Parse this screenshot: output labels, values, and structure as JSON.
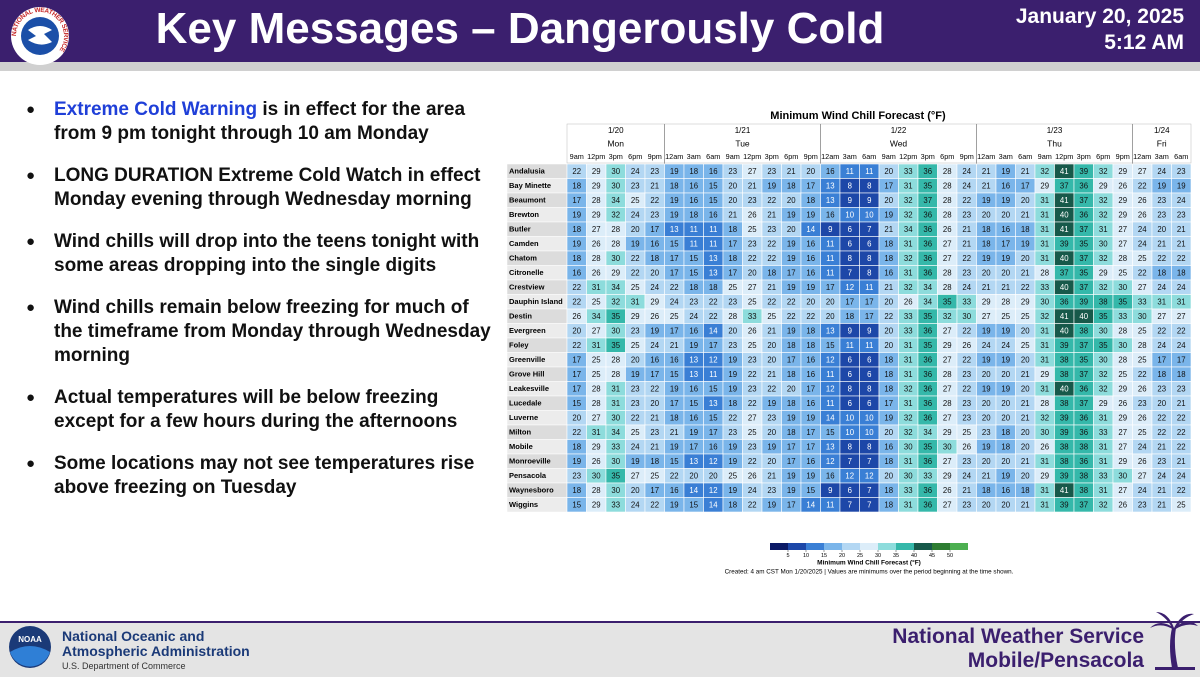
{
  "header": {
    "title": "Key Messages – Dangerously Cold",
    "date": "January 20, 2025",
    "time": "5:12 AM",
    "logo_text": "NATIONAL WEATHER SERVICE"
  },
  "bullets": [
    {
      "highlight": "Extreme Cold Warning",
      "text": " is in effect for the area from 9 pm tonight through 10 am Monday"
    },
    {
      "text": "LONG DURATION Extreme Cold Watch in effect Monday evening through Wednesday morning"
    },
    {
      "text": "Wind chills will drop into the teens tonight with some areas dropping into the single digits"
    },
    {
      "text": "Wind chills remain below freezing for much of the timeframe from Monday through Wednesday morning"
    },
    {
      "text": "Actual temperatures will be below freezing except for a few hours during the afternoons"
    },
    {
      "text": "Some locations may not see temperatures rise above freezing on Tuesday"
    }
  ],
  "table": {
    "title": "Minimum Wind Chill Forecast (°F)",
    "dates": [
      {
        "date": "1/20",
        "day": "Mon"
      },
      {
        "date": "1/21",
        "day": "Tue"
      },
      {
        "date": "1/22",
        "day": "Wed"
      },
      {
        "date": "1/23",
        "day": "Thu"
      },
      {
        "date": "1/24",
        "day": "Fri"
      }
    ],
    "hours": [
      "9am",
      "12pm",
      "3pm",
      "6pm",
      "9pm",
      "12am",
      "3am",
      "6am",
      "9am",
      "12pm",
      "3pm",
      "6pm",
      "9pm",
      "12am",
      "3am",
      "6am",
      "9am",
      "12pm",
      "3pm",
      "6pm",
      "9pm",
      "12am",
      "3am",
      "6am",
      "9am",
      "12pm",
      "3pm",
      "6pm",
      "9pm",
      "12am",
      "3am",
      "6am"
    ],
    "rows": [
      {
        "name": "Andalusia",
        "values": [
          22,
          29,
          30,
          24,
          23,
          19,
          18,
          16,
          23,
          27,
          23,
          21,
          20,
          16,
          11,
          11,
          20,
          33,
          36,
          28,
          24,
          21,
          19,
          21,
          32,
          41,
          39,
          32,
          29,
          27,
          24,
          23
        ]
      },
      {
        "name": "Bay Minette",
        "values": [
          18,
          29,
          30,
          23,
          21,
          18,
          16,
          15,
          20,
          21,
          19,
          18,
          17,
          13,
          8,
          8,
          17,
          31,
          35,
          28,
          24,
          21,
          16,
          17,
          29,
          37,
          36,
          29,
          26,
          22,
          19,
          19
        ]
      },
      {
        "name": "Beaumont",
        "values": [
          17,
          28,
          34,
          25,
          22,
          19,
          16,
          15,
          20,
          23,
          22,
          20,
          18,
          13,
          9,
          9,
          20,
          32,
          37,
          28,
          22,
          19,
          19,
          20,
          31,
          41,
          37,
          32,
          29,
          26,
          23,
          24
        ]
      },
      {
        "name": "Brewton",
        "values": [
          19,
          29,
          32,
          24,
          23,
          19,
          18,
          16,
          21,
          26,
          21,
          19,
          19,
          16,
          10,
          10,
          19,
          32,
          36,
          28,
          23,
          20,
          20,
          21,
          31,
          40,
          36,
          32,
          29,
          26,
          23,
          23
        ]
      },
      {
        "name": "Butler",
        "values": [
          18,
          27,
          28,
          20,
          17,
          13,
          11,
          11,
          18,
          25,
          23,
          20,
          14,
          9,
          6,
          7,
          21,
          34,
          36,
          26,
          21,
          18,
          16,
          18,
          31,
          41,
          37,
          31,
          27,
          24,
          20,
          21
        ]
      },
      {
        "name": "Camden",
        "values": [
          19,
          26,
          28,
          19,
          16,
          15,
          11,
          11,
          17,
          23,
          22,
          19,
          16,
          11,
          6,
          6,
          18,
          31,
          36,
          27,
          21,
          18,
          17,
          19,
          31,
          39,
          35,
          30,
          27,
          24,
          21,
          21
        ]
      },
      {
        "name": "Chatom",
        "values": [
          18,
          28,
          30,
          22,
          18,
          17,
          15,
          13,
          18,
          22,
          22,
          19,
          16,
          11,
          8,
          8,
          18,
          32,
          36,
          27,
          22,
          19,
          19,
          20,
          31,
          40,
          37,
          32,
          28,
          25,
          22,
          22
        ]
      },
      {
        "name": "Citronelle",
        "values": [
          16,
          26,
          29,
          22,
          20,
          17,
          15,
          13,
          17,
          20,
          18,
          17,
          16,
          11,
          7,
          8,
          16,
          31,
          36,
          28,
          23,
          20,
          20,
          21,
          28,
          37,
          35,
          29,
          25,
          22,
          18,
          18
        ]
      },
      {
        "name": "Crestview",
        "values": [
          22,
          31,
          34,
          25,
          24,
          22,
          18,
          18,
          25,
          27,
          21,
          19,
          19,
          17,
          12,
          11,
          21,
          32,
          34,
          28,
          24,
          21,
          21,
          22,
          33,
          40,
          37,
          32,
          30,
          27,
          24,
          24
        ]
      },
      {
        "name": "Dauphin Island",
        "values": [
          22,
          25,
          32,
          31,
          29,
          24,
          23,
          22,
          23,
          25,
          22,
          22,
          20,
          20,
          17,
          17,
          20,
          26,
          34,
          35,
          33,
          29,
          28,
          29,
          30,
          36,
          39,
          38,
          35,
          33,
          31,
          31
        ]
      },
      {
        "name": "Destin",
        "values": [
          26,
          34,
          35,
          29,
          26,
          25,
          24,
          22,
          28,
          33,
          25,
          22,
          22,
          20,
          18,
          17,
          22,
          33,
          35,
          32,
          30,
          27,
          25,
          25,
          32,
          41,
          40,
          35,
          33,
          30,
          27,
          27
        ]
      },
      {
        "name": "Evergreen",
        "values": [
          20,
          27,
          30,
          23,
          19,
          17,
          16,
          14,
          20,
          26,
          21,
          19,
          18,
          13,
          9,
          9,
          20,
          33,
          36,
          27,
          22,
          19,
          19,
          20,
          31,
          40,
          38,
          30,
          28,
          25,
          22,
          22
        ]
      },
      {
        "name": "Foley",
        "values": [
          22,
          31,
          35,
          25,
          24,
          21,
          19,
          17,
          23,
          25,
          20,
          18,
          18,
          15,
          11,
          11,
          20,
          31,
          35,
          29,
          26,
          24,
          24,
          25,
          31,
          39,
          37,
          35,
          30,
          28,
          24,
          24
        ]
      },
      {
        "name": "Greenville",
        "values": [
          17,
          25,
          28,
          20,
          16,
          16,
          13,
          12,
          19,
          23,
          20,
          17,
          16,
          12,
          6,
          6,
          18,
          31,
          36,
          27,
          22,
          19,
          19,
          20,
          31,
          38,
          35,
          30,
          28,
          25,
          17,
          17
        ]
      },
      {
        "name": "Grove Hill",
        "values": [
          17,
          25,
          28,
          19,
          17,
          15,
          13,
          11,
          19,
          22,
          21,
          18,
          16,
          11,
          6,
          6,
          18,
          31,
          36,
          28,
          23,
          20,
          20,
          21,
          29,
          38,
          37,
          32,
          25,
          22,
          18,
          18
        ]
      },
      {
        "name": "Leakesville",
        "values": [
          17,
          28,
          31,
          23,
          22,
          19,
          16,
          15,
          19,
          23,
          22,
          20,
          17,
          12,
          8,
          8,
          18,
          32,
          36,
          27,
          22,
          19,
          19,
          20,
          31,
          40,
          36,
          32,
          29,
          26,
          23,
          23
        ]
      },
      {
        "name": "Lucedale",
        "values": [
          15,
          28,
          31,
          23,
          20,
          17,
          15,
          13,
          18,
          22,
          19,
          18,
          16,
          11,
          6,
          6,
          17,
          31,
          36,
          28,
          23,
          20,
          20,
          21,
          28,
          38,
          37,
          29,
          26,
          23,
          20,
          21
        ]
      },
      {
        "name": "Luverne",
        "values": [
          20,
          27,
          30,
          22,
          21,
          18,
          16,
          15,
          22,
          27,
          23,
          19,
          19,
          14,
          10,
          10,
          19,
          32,
          36,
          27,
          23,
          20,
          20,
          21,
          32,
          39,
          36,
          31,
          29,
          26,
          22,
          22
        ]
      },
      {
        "name": "Milton",
        "values": [
          22,
          31,
          34,
          25,
          23,
          21,
          19,
          17,
          23,
          25,
          20,
          18,
          17,
          15,
          10,
          10,
          20,
          32,
          34,
          29,
          25,
          23,
          18,
          20,
          30,
          39,
          36,
          33,
          27,
          25,
          22,
          22
        ]
      },
      {
        "name": "Mobile",
        "values": [
          18,
          29,
          33,
          24,
          21,
          19,
          17,
          16,
          19,
          23,
          19,
          17,
          17,
          13,
          8,
          8,
          16,
          30,
          35,
          30,
          26,
          19,
          18,
          20,
          26,
          38,
          38,
          31,
          27,
          24,
          21,
          22
        ]
      },
      {
        "name": "Monroeville",
        "values": [
          19,
          26,
          30,
          19,
          18,
          15,
          13,
          12,
          19,
          22,
          20,
          17,
          16,
          12,
          7,
          7,
          18,
          31,
          36,
          27,
          23,
          20,
          20,
          21,
          31,
          38,
          36,
          31,
          29,
          26,
          23,
          21
        ]
      },
      {
        "name": "Pensacola",
        "values": [
          23,
          30,
          35,
          27,
          25,
          22,
          20,
          20,
          25,
          26,
          21,
          19,
          19,
          16,
          12,
          12,
          20,
          30,
          33,
          29,
          24,
          21,
          19,
          20,
          29,
          39,
          38,
          33,
          30,
          27,
          24,
          24
        ]
      },
      {
        "name": "Waynesboro",
        "values": [
          18,
          28,
          30,
          20,
          17,
          16,
          14,
          12,
          19,
          24,
          23,
          19,
          15,
          9,
          6,
          7,
          18,
          33,
          36,
          26,
          21,
          18,
          16,
          18,
          31,
          41,
          38,
          31,
          27,
          24,
          21,
          22
        ]
      },
      {
        "name": "Wiggins",
        "values": [
          15,
          29,
          33,
          24,
          22,
          19,
          15,
          14,
          18,
          22,
          19,
          17,
          14,
          11,
          7,
          7,
          18,
          31,
          36,
          27,
          23,
          20,
          20,
          21,
          31,
          39,
          37,
          32,
          26,
          23,
          21,
          25
        ]
      }
    ],
    "colorbar": {
      "ticks": [
        5,
        10,
        15,
        20,
        25,
        30,
        35,
        40,
        45,
        50
      ],
      "colors": [
        "#0b1a66",
        "#1d47a8",
        "#3a7fd5",
        "#7ab5ea",
        "#b3d7f3",
        "#dcedf9",
        "#8ddcdc",
        "#35b8aa",
        "#17594a",
        "#2e7d32",
        "#4caf50"
      ],
      "label": "Minimum Wind Chill Forecast (°F)"
    },
    "created": "Created: 4 am CST Mon 1/20/2025  |  Values are minimums over the period beginning at the time shown."
  },
  "footer": {
    "noaa_logo": "NOAA",
    "agency": [
      "National Oceanic and",
      "Atmospheric Administration"
    ],
    "dept": "U.S. Department of Commerce",
    "office": [
      "National Weather Service",
      "Mobile/Pensacola"
    ]
  }
}
